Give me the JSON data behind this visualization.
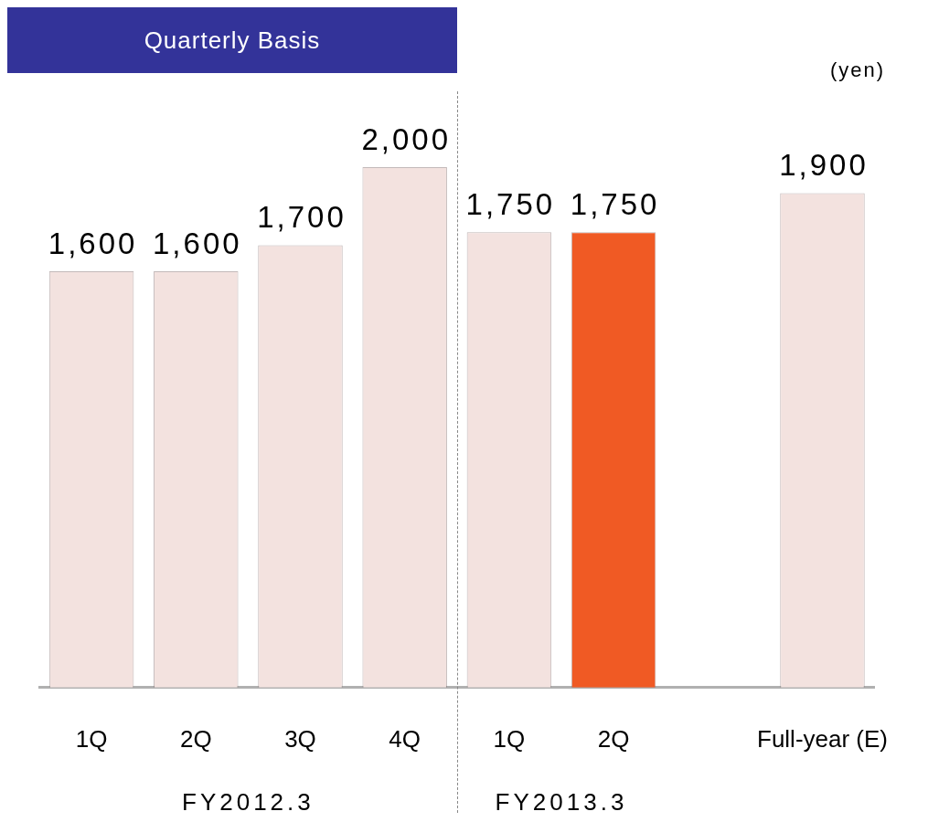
{
  "chart_data": {
    "type": "bar",
    "title": "Quarterly Basis",
    "ylabel": "(yen)",
    "categories": [
      "1Q",
      "2Q",
      "3Q",
      "4Q",
      "1Q",
      "2Q",
      null,
      "Full-year (E)"
    ],
    "values": [
      1600,
      1600,
      1700,
      2000,
      1750,
      1750,
      null,
      1900
    ],
    "value_labels": [
      "1,600",
      "1,600",
      "1,700",
      "2,000",
      "1,750",
      "1,750",
      null,
      "1,900"
    ],
    "colors": [
      "#f3e2df",
      "#f3e2df",
      "#f3e2df",
      "#f3e2df",
      "#f3e2df",
      "#f05a24",
      "#f3e2df",
      "#f3e2df"
    ],
    "annotations": [
      "FY2012.3",
      "FY2013.3"
    ]
  }
}
